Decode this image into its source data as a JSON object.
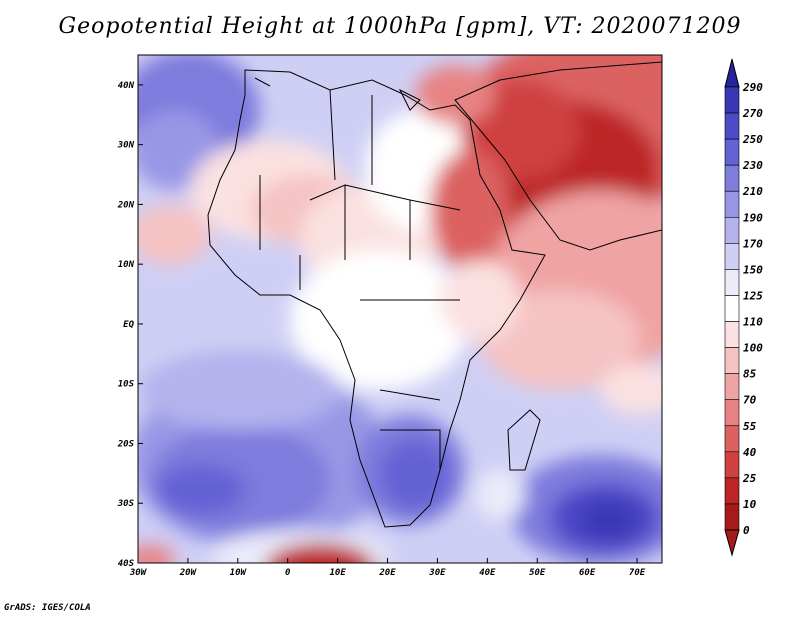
{
  "title": "Geopotential Height at 1000hPa [gpm], VT: 2020071209",
  "credit": "GrADS: IGES/COLA",
  "map": {
    "x_ticks": [
      "30W",
      "20W",
      "10W",
      "0",
      "10E",
      "20E",
      "30E",
      "40E",
      "50E",
      "60E",
      "70E"
    ],
    "y_ticks": [
      "40N",
      "30N",
      "20N",
      "10N",
      "EQ",
      "10S",
      "20S",
      "30S",
      "40S"
    ],
    "lon_range": [
      -30,
      75
    ],
    "lat_range": [
      -40,
      45
    ]
  },
  "colorbar": {
    "labels": [
      "290",
      "270",
      "250",
      "230",
      "210",
      "190",
      "170",
      "150",
      "125",
      "110",
      "100",
      "85",
      "70",
      "55",
      "40",
      "25",
      "10",
      "0"
    ],
    "colors": [
      "#27249b",
      "#3a37b5",
      "#4d4ac8",
      "#6462d4",
      "#7e7cdd",
      "#9897e6",
      "#b4b3ee",
      "#cfcff5",
      "#ebebfa",
      "#ffffff",
      "#fbe1e1",
      "#f6c3c3",
      "#f0a3a3",
      "#e78383",
      "#dc6262",
      "#cf4141",
      "#bd2525",
      "#a51a1a"
    ]
  }
}
